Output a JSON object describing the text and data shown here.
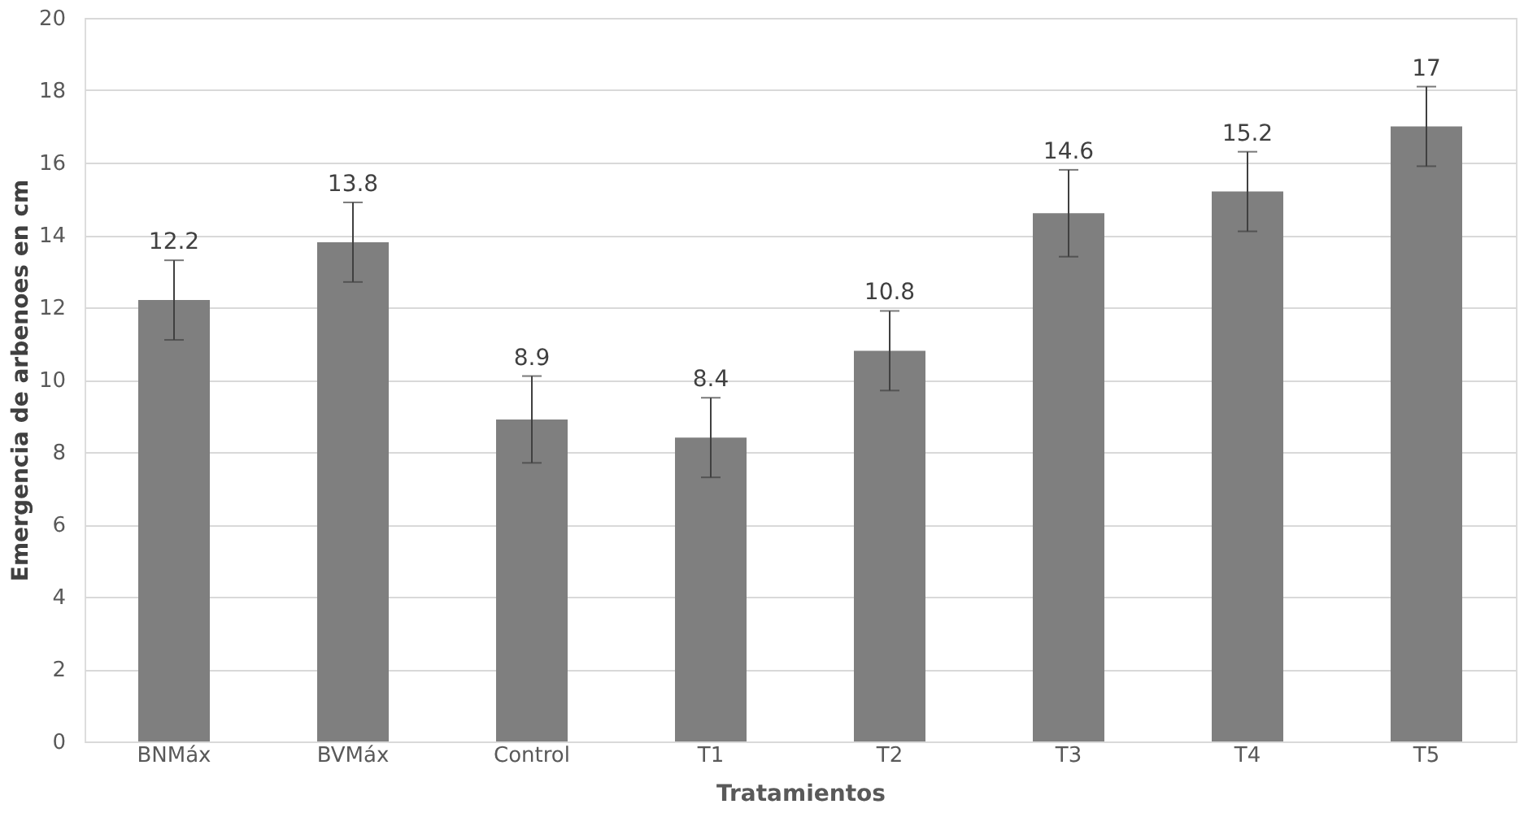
{
  "chart_data": {
    "type": "bar",
    "xlabel": "Tratamientos",
    "ylabel": "Emergencia de arbenoes en cm",
    "categories": [
      "BNMáx",
      "BVMáx",
      "Control",
      "T1",
      "T2",
      "T3",
      "T4",
      "T5"
    ],
    "values": [
      12.2,
      13.8,
      8.9,
      8.4,
      10.8,
      14.6,
      15.2,
      17
    ],
    "errors": [
      1.1,
      1.1,
      1.2,
      1.1,
      1.1,
      1.2,
      1.1,
      1.1
    ],
    "color": "#7f7f7f",
    "ylim": [
      0,
      20
    ],
    "yticks": [
      0,
      2,
      4,
      6,
      8,
      10,
      12,
      14,
      16,
      18,
      20
    ],
    "grid": "y",
    "data_labels": true
  }
}
